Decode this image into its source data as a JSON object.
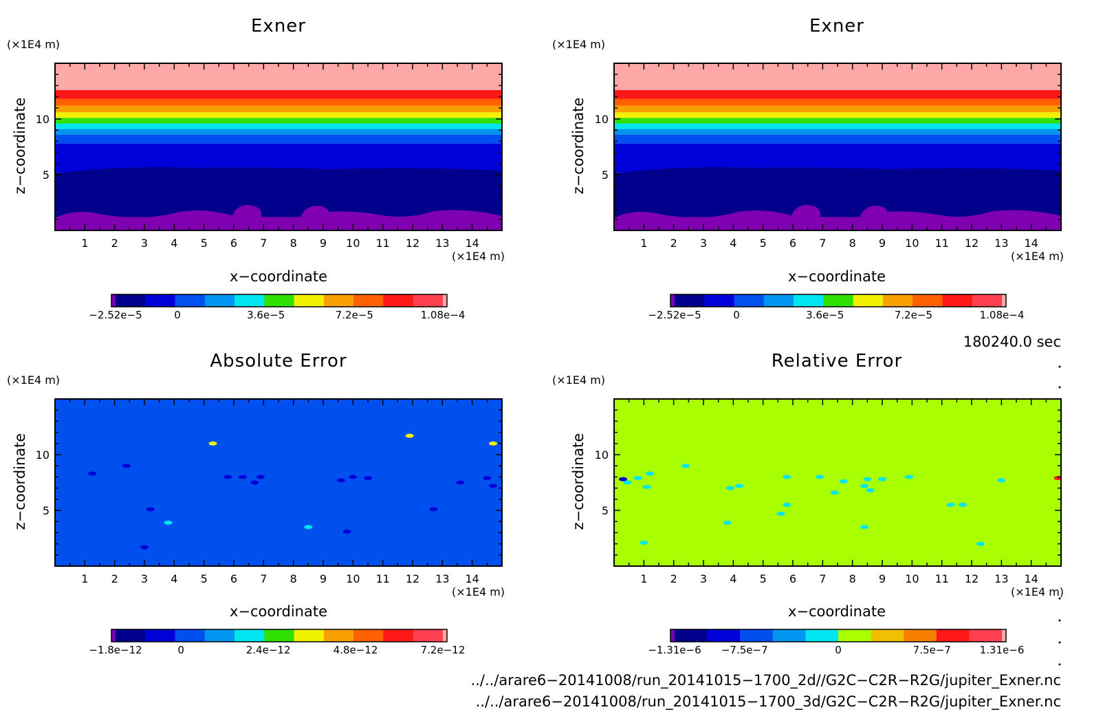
{
  "chart_data": [
    {
      "type": "heatmap",
      "title": "Exner",
      "xlabel": "x−coordinate",
      "ylabel": "z−coordinate",
      "x_unit": "(×1E4 m)",
      "y_unit": "(×1E4 m)",
      "xlim": [
        0,
        15
      ],
      "ylim": [
        0,
        15
      ],
      "xticks": [
        "1",
        "2",
        "3",
        "4",
        "5",
        "6",
        "7",
        "8",
        "9",
        "10",
        "11",
        "12",
        "13",
        "14"
      ],
      "yticks": [
        "5",
        "10"
      ],
      "colorbar": {
        "colors": [
          "#7f00b0",
          "#00008c",
          "#0000d8",
          "#0050f0",
          "#0096f0",
          "#00e6f0",
          "#30e000",
          "#f0f000",
          "#f8a000",
          "#ff6000",
          "#ff1818",
          "#ff4050",
          "#ffa8a8"
        ],
        "tick_labels": [
          "−2.52e−5",
          "0",
          "3.6e−5",
          "7.2e−5",
          "1.08e−4"
        ],
        "tick_values": [
          -2.52e-05,
          0,
          3.6e-05,
          7.2e-05,
          0.000108
        ]
      },
      "layers": [
        {
          "z_bottom": 0,
          "z_top": 1.2,
          "color": "#7f00b0"
        },
        {
          "z_bottom": 1.2,
          "z_top": 5.2,
          "color": "#00008c"
        },
        {
          "z_bottom": 5.2,
          "z_top": 7.8,
          "color": "#0000d8"
        },
        {
          "z_bottom": 7.8,
          "z_top": 8.6,
          "color": "#0050f0"
        },
        {
          "z_bottom": 8.6,
          "z_top": 9.1,
          "color": "#0096f0"
        },
        {
          "z_bottom": 9.1,
          "z_top": 9.6,
          "color": "#00e6f0"
        },
        {
          "z_bottom": 9.6,
          "z_top": 10.1,
          "color": "#30e000"
        },
        {
          "z_bottom": 10.1,
          "z_top": 10.6,
          "color": "#f0f000"
        },
        {
          "z_bottom": 10.6,
          "z_top": 11.2,
          "color": "#f8a000"
        },
        {
          "z_bottom": 11.2,
          "z_top": 11.8,
          "color": "#ff6000"
        },
        {
          "z_bottom": 11.8,
          "z_top": 12.6,
          "color": "#ff1818"
        },
        {
          "z_bottom": 12.6,
          "z_top": 15,
          "color": "#ffa8a8"
        }
      ]
    },
    {
      "type": "heatmap",
      "title": "Exner",
      "xlabel": "x−coordinate",
      "ylabel": "z−coordinate",
      "x_unit": "(×1E4 m)",
      "y_unit": "(×1E4 m)",
      "xlim": [
        0,
        15
      ],
      "ylim": [
        0,
        15
      ],
      "xticks": [
        "1",
        "2",
        "3",
        "4",
        "5",
        "6",
        "7",
        "8",
        "9",
        "10",
        "11",
        "12",
        "13",
        "14"
      ],
      "yticks": [
        "5",
        "10"
      ],
      "colorbar": {
        "colors": [
          "#7f00b0",
          "#00008c",
          "#0000d8",
          "#0050f0",
          "#0096f0",
          "#00e6f0",
          "#30e000",
          "#f0f000",
          "#f8a000",
          "#ff6000",
          "#ff1818",
          "#ff4050",
          "#ffa8a8"
        ],
        "tick_labels": [
          "−2.52e−5",
          "0",
          "3.6e−5",
          "7.2e−5",
          "1.08e−4"
        ],
        "tick_values": [
          -2.52e-05,
          0,
          3.6e-05,
          7.2e-05,
          0.000108
        ]
      },
      "layers": [
        {
          "z_bottom": 0,
          "z_top": 1.2,
          "color": "#7f00b0"
        },
        {
          "z_bottom": 1.2,
          "z_top": 5.2,
          "color": "#00008c"
        },
        {
          "z_bottom": 5.2,
          "z_top": 7.8,
          "color": "#0000d8"
        },
        {
          "z_bottom": 7.8,
          "z_top": 8.6,
          "color": "#0050f0"
        },
        {
          "z_bottom": 8.6,
          "z_top": 9.1,
          "color": "#0096f0"
        },
        {
          "z_bottom": 9.1,
          "z_top": 9.6,
          "color": "#00e6f0"
        },
        {
          "z_bottom": 9.6,
          "z_top": 10.1,
          "color": "#30e000"
        },
        {
          "z_bottom": 10.1,
          "z_top": 10.6,
          "color": "#f0f000"
        },
        {
          "z_bottom": 10.6,
          "z_top": 11.2,
          "color": "#f8a000"
        },
        {
          "z_bottom": 11.2,
          "z_top": 11.8,
          "color": "#ff6000"
        },
        {
          "z_bottom": 11.8,
          "z_top": 12.6,
          "color": "#ff1818"
        },
        {
          "z_bottom": 12.6,
          "z_top": 15,
          "color": "#ffa8a8"
        }
      ]
    },
    {
      "type": "heatmap",
      "title": "Absolute Error",
      "xlabel": "x−coordinate",
      "ylabel": "z−coordinate",
      "x_unit": "(×1E4 m)",
      "y_unit": "(×1E4 m)",
      "xlim": [
        0,
        15
      ],
      "ylim": [
        0,
        15
      ],
      "xticks": [
        "1",
        "2",
        "3",
        "4",
        "5",
        "6",
        "7",
        "8",
        "9",
        "10",
        "11",
        "12",
        "13",
        "14"
      ],
      "yticks": [
        "5",
        "10"
      ],
      "background_color": "#0050f0",
      "colorbar": {
        "colors": [
          "#7f00b0",
          "#00008c",
          "#0000d8",
          "#0050f0",
          "#0096f0",
          "#00e6f0",
          "#30e000",
          "#f0f000",
          "#f8a000",
          "#ff6000",
          "#ff1818",
          "#ff4050",
          "#ffa8a8"
        ],
        "tick_labels": [
          "−1.8e−12",
          "0",
          "2.4e−12",
          "4.8e−12",
          "7.2e−12"
        ],
        "tick_values": [
          -1.8e-12,
          0,
          2.4e-12,
          4.8e-12,
          7.2e-12
        ]
      },
      "spots": [
        {
          "x": 1.25,
          "z": 8.3,
          "color": "#0000d8"
        },
        {
          "x": 2.4,
          "z": 9.0,
          "color": "#0000d8"
        },
        {
          "x": 5.3,
          "z": 11.0,
          "color": "#f0f000"
        },
        {
          "x": 11.9,
          "z": 11.7,
          "color": "#f0f000"
        },
        {
          "x": 14.7,
          "z": 11.0,
          "color": "#f0f000"
        },
        {
          "x": 5.8,
          "z": 8.0,
          "color": "#0000d8"
        },
        {
          "x": 6.3,
          "z": 8.0,
          "color": "#0000d8"
        },
        {
          "x": 6.9,
          "z": 8.0,
          "color": "#0000d8"
        },
        {
          "x": 6.7,
          "z": 7.5,
          "color": "#0000d8"
        },
        {
          "x": 9.6,
          "z": 7.7,
          "color": "#0000d8"
        },
        {
          "x": 10.0,
          "z": 8.0,
          "color": "#0000d8"
        },
        {
          "x": 10.5,
          "z": 7.9,
          "color": "#0000d8"
        },
        {
          "x": 13.6,
          "z": 7.5,
          "color": "#0000d8"
        },
        {
          "x": 14.5,
          "z": 7.9,
          "color": "#0000d8"
        },
        {
          "x": 14.7,
          "z": 7.2,
          "color": "#0000d8"
        },
        {
          "x": 3.2,
          "z": 5.1,
          "color": "#0000d8"
        },
        {
          "x": 12.7,
          "z": 5.1,
          "color": "#0000d8"
        },
        {
          "x": 9.8,
          "z": 3.1,
          "color": "#0000d8"
        },
        {
          "x": 3.0,
          "z": 1.7,
          "color": "#0000d8"
        },
        {
          "x": 3.8,
          "z": 3.9,
          "color": "#00e6f0"
        },
        {
          "x": 8.5,
          "z": 3.5,
          "color": "#00e6f0"
        }
      ]
    },
    {
      "type": "heatmap",
      "title": "Relative Error",
      "xlabel": "x−coordinate",
      "ylabel": "z−coordinate",
      "x_unit": "(×1E4 m)",
      "y_unit": "(×1E4 m)",
      "xlim": [
        0,
        15
      ],
      "ylim": [
        0,
        15
      ],
      "xticks": [
        "1",
        "2",
        "3",
        "4",
        "5",
        "6",
        "7",
        "8",
        "9",
        "10",
        "11",
        "12",
        "13",
        "14"
      ],
      "yticks": [
        "5",
        "10"
      ],
      "background_color": "#a8ff00",
      "colorbar": {
        "colors": [
          "#7f00b0",
          "#00008c",
          "#0000d8",
          "#0050f0",
          "#0096f0",
          "#00e6f0",
          "#a8ff00",
          "#f0c000",
          "#f88000",
          "#ff1818",
          "#ff4050",
          "#ffa8a8"
        ],
        "tick_labels": [
          "−1.31e−6",
          "−7.5e−7",
          "0",
          "7.5e−7",
          "1.31e−6"
        ],
        "tick_values": [
          -1.31e-06,
          -7.5e-07,
          0,
          7.5e-07,
          1.31e-06
        ]
      },
      "spots": [
        {
          "x": 0.3,
          "z": 7.8,
          "color": "#00e6f0"
        },
        {
          "x": 0.45,
          "z": 7.5,
          "color": "#00e6f0"
        },
        {
          "x": 0.3,
          "z": 7.8,
          "color": "#0000d8"
        },
        {
          "x": 0.8,
          "z": 7.9,
          "color": "#00e6f0"
        },
        {
          "x": 1.2,
          "z": 8.3,
          "color": "#00e6f0"
        },
        {
          "x": 1.1,
          "z": 7.1,
          "color": "#00e6f0"
        },
        {
          "x": 2.4,
          "z": 9.0,
          "color": "#00e6f0"
        },
        {
          "x": 3.9,
          "z": 7.0,
          "color": "#00e6f0"
        },
        {
          "x": 4.2,
          "z": 7.2,
          "color": "#00e6f0"
        },
        {
          "x": 5.8,
          "z": 8.0,
          "color": "#00e6f0"
        },
        {
          "x": 6.9,
          "z": 8.0,
          "color": "#00e6f0"
        },
        {
          "x": 7.7,
          "z": 7.6,
          "color": "#00e6f0"
        },
        {
          "x": 8.5,
          "z": 7.8,
          "color": "#00e6f0"
        },
        {
          "x": 9.0,
          "z": 7.8,
          "color": "#00e6f0"
        },
        {
          "x": 8.4,
          "z": 7.2,
          "color": "#00e6f0"
        },
        {
          "x": 8.6,
          "z": 6.8,
          "color": "#00e6f0"
        },
        {
          "x": 7.4,
          "z": 6.6,
          "color": "#00e6f0"
        },
        {
          "x": 9.9,
          "z": 8.0,
          "color": "#00e6f0"
        },
        {
          "x": 13.0,
          "z": 7.7,
          "color": "#00e6f0"
        },
        {
          "x": 5.8,
          "z": 5.5,
          "color": "#00e6f0"
        },
        {
          "x": 5.6,
          "z": 4.7,
          "color": "#00e6f0"
        },
        {
          "x": 11.3,
          "z": 5.5,
          "color": "#00e6f0"
        },
        {
          "x": 11.7,
          "z": 5.5,
          "color": "#00e6f0"
        },
        {
          "x": 3.8,
          "z": 3.9,
          "color": "#00e6f0"
        },
        {
          "x": 8.4,
          "z": 3.5,
          "color": "#00e6f0"
        },
        {
          "x": 1.0,
          "z": 2.1,
          "color": "#00e6f0"
        },
        {
          "x": 12.3,
          "z": 2.0,
          "color": "#00e6f0"
        },
        {
          "x": 14.9,
          "z": 7.9,
          "color": "#ff1818"
        }
      ]
    }
  ],
  "time_label": "180240.0 sec",
  "footer": {
    "line1": "../../arare6−20141008/run_20141015−1700_2d//G2C−C2R−R2G/jupiter_Exner.nc",
    "line2": "../../arare6−20141008/run_20141015−1700_3d/G2C−C2R−R2G/jupiter_Exner.nc"
  }
}
